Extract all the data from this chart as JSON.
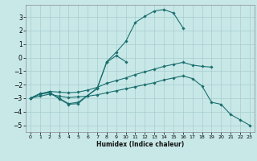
{
  "xlabel": "Humidex (Indice chaleur)",
  "xlim": [
    -0.5,
    23.5
  ],
  "ylim": [
    -5.5,
    3.9
  ],
  "yticks": [
    -5,
    -4,
    -3,
    -2,
    -1,
    0,
    1,
    2,
    3
  ],
  "xticks": [
    0,
    1,
    2,
    3,
    4,
    5,
    6,
    7,
    8,
    9,
    10,
    11,
    12,
    13,
    14,
    15,
    16,
    17,
    18,
    19,
    20,
    21,
    22,
    23
  ],
  "bg_color": "#c8e8e8",
  "grid_color": "#a8cccc",
  "line_color": "#1a6e6e",
  "lines": [
    {
      "x": [
        0,
        1,
        2,
        3,
        4,
        5,
        6,
        7,
        8,
        9,
        10,
        11,
        12,
        13,
        14,
        15,
        16
      ],
      "y": [
        -3.0,
        -2.7,
        -2.6,
        -3.0,
        -3.4,
        -3.3,
        -2.8,
        -2.3,
        -0.3,
        0.4,
        1.2,
        2.6,
        3.05,
        3.45,
        3.55,
        3.3,
        2.2
      ]
    },
    {
      "x": [
        0,
        1,
        2,
        3,
        4,
        5,
        6,
        7,
        8,
        9,
        10
      ],
      "y": [
        -3.0,
        -2.65,
        -2.55,
        -3.05,
        -3.45,
        -3.4,
        -2.8,
        -2.25,
        -0.35,
        0.15,
        -0.3
      ]
    },
    {
      "x": [
        0,
        1,
        2,
        3,
        4,
        5,
        6,
        7,
        8,
        9,
        10,
        11,
        12,
        13,
        14,
        15,
        16,
        17,
        18,
        19
      ],
      "y": [
        -3.0,
        -2.7,
        -2.5,
        -2.55,
        -2.6,
        -2.55,
        -2.4,
        -2.2,
        -1.9,
        -1.7,
        -1.5,
        -1.25,
        -1.05,
        -0.85,
        -0.65,
        -0.5,
        -0.35,
        -0.55,
        -0.65,
        -0.7
      ]
    },
    {
      "x": [
        0,
        1,
        2,
        3,
        4,
        5,
        6,
        7,
        8,
        9,
        10,
        11,
        12,
        13,
        14,
        15,
        16,
        17,
        18,
        19,
        20,
        21,
        22,
        23
      ],
      "y": [
        -3.0,
        -2.85,
        -2.7,
        -2.85,
        -2.95,
        -2.9,
        -2.85,
        -2.75,
        -2.6,
        -2.45,
        -2.3,
        -2.15,
        -2.0,
        -1.85,
        -1.65,
        -1.5,
        -1.35,
        -1.55,
        -2.1,
        -3.3,
        -3.45,
        -4.2,
        -4.6,
        -5.0
      ]
    }
  ]
}
